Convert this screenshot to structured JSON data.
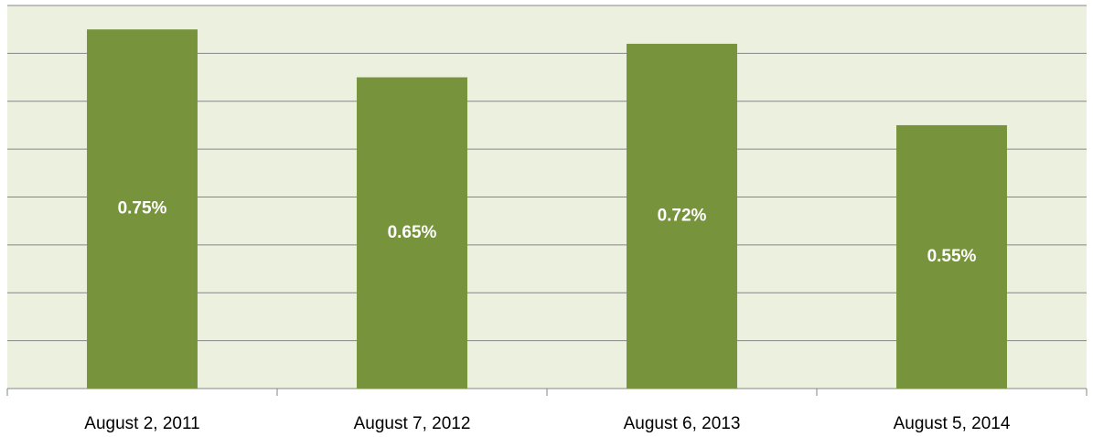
{
  "chart_data": {
    "type": "bar",
    "categories": [
      "August 2, 2011",
      "August 7, 2012",
      "August 6, 2013",
      "August 5, 2014"
    ],
    "values": [
      0.75,
      0.65,
      0.72,
      0.55
    ],
    "value_labels": [
      "0.75%",
      "0.65%",
      "0.72%",
      "0.55%"
    ],
    "color": "#77933c",
    "ylim": [
      0,
      0.8
    ],
    "yticks": [
      0,
      0.1,
      0.2,
      0.3,
      0.4,
      0.5,
      0.6,
      0.7,
      0.8
    ],
    "grid": true
  }
}
